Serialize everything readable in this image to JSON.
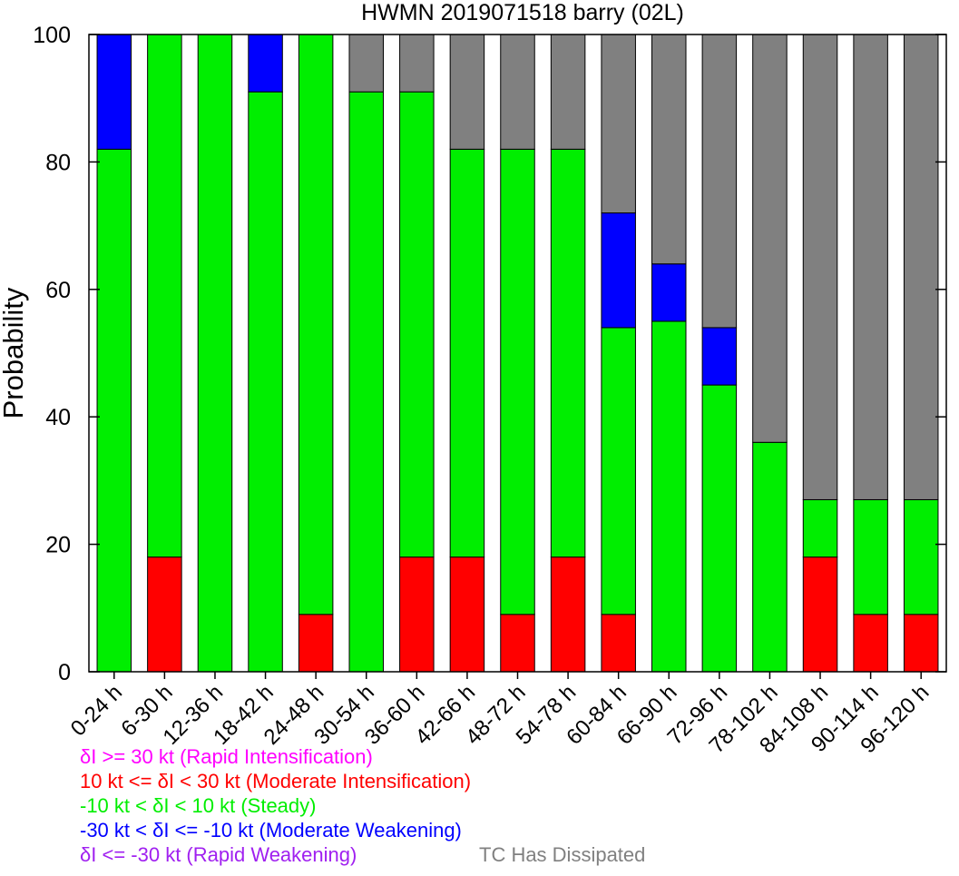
{
  "chart_data": {
    "type": "bar",
    "stacked": true,
    "title": "HWMN 2019071518 barry (02L)",
    "xlabel": "",
    "ylabel": "Probability",
    "ylim": [
      0,
      100
    ],
    "yticks": [
      0,
      20,
      40,
      60,
      80,
      100
    ],
    "grid": false,
    "categories": [
      "0-24 h",
      "6-30 h",
      "12-36 h",
      "18-42 h",
      "24-48 h",
      "30-54 h",
      "36-60 h",
      "42-66 h",
      "48-72 h",
      "54-78 h",
      "60-84 h",
      "66-90 h",
      "72-96 h",
      "78-102 h",
      "84-108 h",
      "90-114 h",
      "96-120 h"
    ],
    "series": [
      {
        "key": "rapid_intensification",
        "color": "#ff00ff",
        "values": [
          0,
          0,
          0,
          0,
          0,
          0,
          0,
          0,
          0,
          0,
          0,
          0,
          0,
          0,
          0,
          0,
          0
        ]
      },
      {
        "key": "moderate_intensification",
        "color": "#ff0000",
        "values": [
          0,
          18,
          0,
          0,
          9,
          0,
          18,
          18,
          9,
          18,
          9,
          0,
          0,
          0,
          18,
          9,
          9
        ]
      },
      {
        "key": "steady",
        "color": "#00ee00",
        "values": [
          82,
          82,
          100,
          91,
          91,
          91,
          73,
          64,
          73,
          64,
          45,
          55,
          45,
          36,
          9,
          18,
          18
        ]
      },
      {
        "key": "moderate_weakening",
        "color": "#0000ff",
        "values": [
          18,
          0,
          0,
          9,
          0,
          0,
          0,
          0,
          0,
          0,
          18,
          9,
          9,
          0,
          0,
          0,
          0
        ]
      },
      {
        "key": "rapid_weakening",
        "color": "#a020f0",
        "values": [
          0,
          0,
          0,
          0,
          0,
          0,
          0,
          0,
          0,
          0,
          0,
          0,
          0,
          0,
          0,
          0,
          0
        ]
      },
      {
        "key": "dissipated",
        "color": "#808080",
        "values": [
          0,
          0,
          0,
          0,
          0,
          9,
          9,
          18,
          18,
          18,
          28,
          36,
          46,
          64,
          73,
          73,
          73
        ]
      }
    ],
    "legend": {
      "placement": "bottom-left",
      "items": [
        {
          "label": "δI >= 30 kt (Rapid Intensification)",
          "color": "#ff00ff"
        },
        {
          "label": "10 kt <= δI < 30 kt (Moderate Intensification)",
          "color": "#ff0000"
        },
        {
          "label": "-10 kt < δI < 10 kt (Steady)",
          "color": "#00ee00"
        },
        {
          "label": "-30 kt < δI <= -10 kt (Moderate Weakening)",
          "color": "#0000ff"
        },
        {
          "label": "δI <= -30 kt (Rapid Weakening)",
          "color": "#a020f0"
        },
        {
          "label": "TC Has Dissipated",
          "color": "#808080"
        }
      ]
    }
  }
}
